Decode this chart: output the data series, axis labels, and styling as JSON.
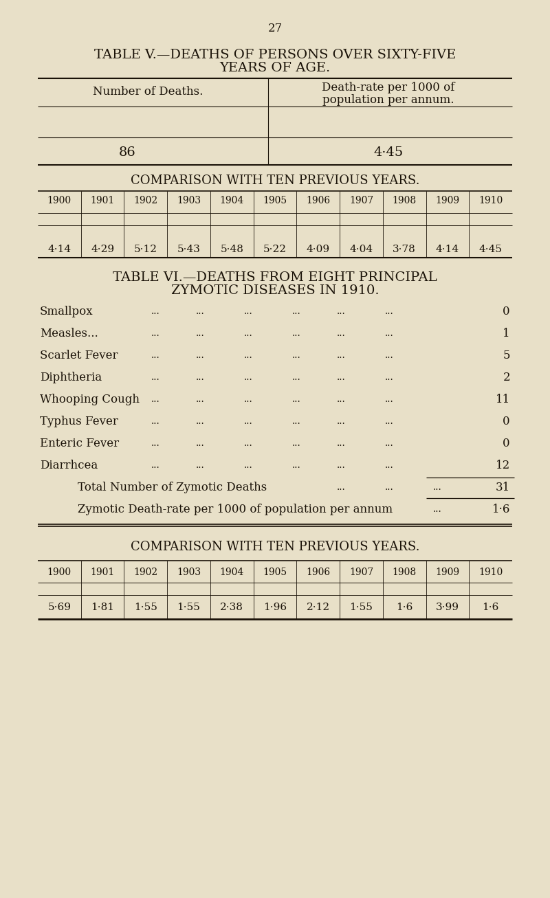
{
  "bg_color": "#e8e0c8",
  "text_color": "#1a1208",
  "page_number": "27",
  "table5_title_line1": "TABLE V.—DEATHS OF PERSONS OVER SIXTY-FIVE",
  "table5_title_line2": "YEARS OF AGE.",
  "table5_col1_header": "Number of Deaths.",
  "table5_col2_header_line1": "Death-rate per 1000 of",
  "table5_col2_header_line2": "population per annum.",
  "table5_val1": "86",
  "table5_val2": "4·45",
  "comparison1_title": "COMPARISON WITH TEN PREVIOUS YEARS.",
  "years": [
    "1900",
    "1901",
    "1902",
    "1903",
    "1904",
    "1905",
    "1906",
    "1907",
    "1908",
    "1909",
    "1910"
  ],
  "table5_rates": [
    "4·14",
    "4·29",
    "5·12",
    "5·43",
    "5·48",
    "5·22",
    "4·09",
    "4·04",
    "3·78",
    "4·14",
    "4·45"
  ],
  "table6_title_line1": "TABLE VI.—DEATHS FROM EIGHT PRINCIPAL",
  "table6_title_line2": "ZYMOTIC DISEASES IN 1910.",
  "diseases": [
    [
      "Smallpox",
      "0"
    ],
    [
      "Measles...",
      "1"
    ],
    [
      "Scarlet Fever",
      "5"
    ],
    [
      "Diphtheria",
      "2"
    ],
    [
      "Whooping Cough",
      "11"
    ],
    [
      "Typhus Fever",
      "0"
    ],
    [
      "Enteric Fever",
      "0"
    ],
    [
      "Diarrhcea",
      "12"
    ]
  ],
  "total_label": "Total Number of Zymotic Deaths",
  "total_value": "31",
  "rate_label": "Zymotic Death-rate per 1000 of population per annum",
  "rate_value": "1·6",
  "comparison2_title": "COMPARISON WITH TEN PREVIOUS YEARS.",
  "table6_rates": [
    "5·69",
    "1·81",
    "1·55",
    "1·55",
    "2·38",
    "1·96",
    "2·12",
    "1·55",
    "1·6",
    "3·99",
    "1·6"
  ]
}
